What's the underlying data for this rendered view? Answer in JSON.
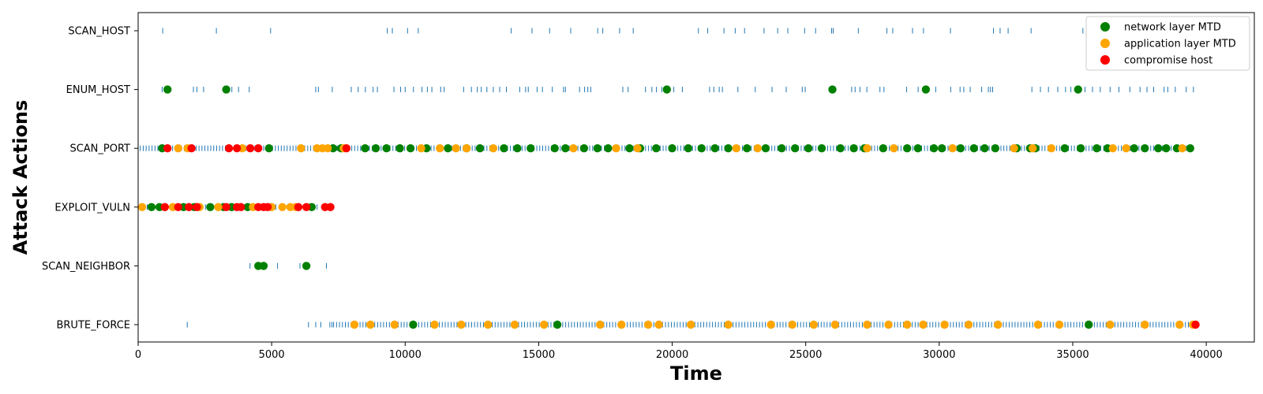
{
  "chart_data": {
    "type": "scatter",
    "title": "",
    "xlabel": "Time",
    "ylabel": "Attack Actions",
    "xlim": [
      0,
      41800
    ],
    "x_ticks": [
      0,
      5000,
      10000,
      15000,
      20000,
      25000,
      30000,
      35000,
      40000
    ],
    "categories": [
      "SCAN_HOST",
      "ENUM_HOST",
      "SCAN_PORT",
      "EXPLOIT_VULN",
      "SCAN_NEIGHBOR",
      "BRUTE_FORCE"
    ],
    "grid": false,
    "legend": "top-right",
    "colors": {
      "action_ticks": "#1f77b4",
      "network_layer_mtd": "#008000",
      "application_layer_mtd": "#ffa500",
      "compromise_host": "#ff0000"
    },
    "action_ticks": {
      "SCAN_HOST": [
        920,
        2930,
        4960,
        9330,
        9520,
        10090,
        10490,
        13970,
        14750,
        15410,
        16200,
        17210,
        17400,
        18030,
        18540,
        20980,
        21330,
        21940,
        22360,
        22710,
        23440,
        23950,
        24330,
        24960,
        25370,
        25970,
        26030,
        26970,
        28040,
        28260,
        29000,
        29410,
        30420,
        32030,
        32280,
        32580,
        33440,
        35380
      ],
      "ENUM_HOST": [
        900,
        1100,
        2070,
        2200,
        2450,
        3200,
        3510,
        3760,
        4160,
        6650,
        6750,
        7270,
        7980,
        8240,
        8510,
        8800,
        8960,
        9580,
        9830,
        10000,
        10310,
        10630,
        10830,
        11000,
        11330,
        11460,
        12190,
        12480,
        12700,
        12850,
        13060,
        13300,
        13540,
        13790,
        14290,
        14510,
        14610,
        14940,
        15140,
        15510,
        15930,
        16000,
        16530,
        16720,
        16840,
        16950,
        18150,
        18350,
        19000,
        19240,
        19410,
        19610,
        19880,
        20060,
        20380,
        21400,
        21560,
        21760,
        21880,
        22460,
        23110,
        23740,
        24270,
        24870,
        24980,
        26720,
        26850,
        27030,
        27290,
        27780,
        27930,
        28780,
        29210,
        29550,
        29870,
        30430,
        30780,
        30920,
        31160,
        31590,
        31840,
        31920,
        32000,
        33470,
        33790,
        34090,
        34440,
        34730,
        34930,
        35460,
        35740,
        36030,
        36400,
        36730,
        37140,
        37520,
        37780,
        38030,
        38420,
        38560,
        38840,
        39250,
        39520
      ],
      "EXPLOIT_VULN": [
        120,
        340,
        560,
        770,
        990,
        1200,
        1420,
        1640,
        1860,
        2080,
        2300,
        2520,
        2740,
        2960,
        3180,
        3400,
        3620,
        3840,
        4060,
        4280,
        4500,
        4720,
        4940,
        5160,
        5380,
        5600,
        5820,
        6040,
        6260,
        6480,
        6700,
        6920,
        7140
      ],
      "SCAN_NEIGHBOR": [
        4190,
        4790,
        5220,
        6060,
        7050
      ],
      "BRUTE_FORCE": [
        1840,
        6380,
        6650,
        6840,
        7180,
        7260
      ]
    },
    "scan_port_tick_range": [
      80,
      39500
    ],
    "brute_force_tick_range": [
      7320,
      39500
    ],
    "series": [
      {
        "name": "network layer MTD",
        "points": [
          {
            "x": 1100,
            "y": "ENUM_HOST"
          },
          {
            "x": 3300,
            "y": "ENUM_HOST"
          },
          {
            "x": 19800,
            "y": "ENUM_HOST"
          },
          {
            "x": 26000,
            "y": "ENUM_HOST"
          },
          {
            "x": 29500,
            "y": "ENUM_HOST"
          },
          {
            "x": 35200,
            "y": "ENUM_HOST"
          },
          {
            "x": 900,
            "y": "SCAN_PORT"
          },
          {
            "x": 4900,
            "y": "SCAN_PORT"
          },
          {
            "x": 7300,
            "y": "SCAN_PORT"
          },
          {
            "x": 7600,
            "y": "SCAN_PORT"
          },
          {
            "x": 8500,
            "y": "SCAN_PORT"
          },
          {
            "x": 8900,
            "y": "SCAN_PORT"
          },
          {
            "x": 9300,
            "y": "SCAN_PORT"
          },
          {
            "x": 9800,
            "y": "SCAN_PORT"
          },
          {
            "x": 10200,
            "y": "SCAN_PORT"
          },
          {
            "x": 10800,
            "y": "SCAN_PORT"
          },
          {
            "x": 11600,
            "y": "SCAN_PORT"
          },
          {
            "x": 12300,
            "y": "SCAN_PORT"
          },
          {
            "x": 12800,
            "y": "SCAN_PORT"
          },
          {
            "x": 13700,
            "y": "SCAN_PORT"
          },
          {
            "x": 14200,
            "y": "SCAN_PORT"
          },
          {
            "x": 14700,
            "y": "SCAN_PORT"
          },
          {
            "x": 15600,
            "y": "SCAN_PORT"
          },
          {
            "x": 16000,
            "y": "SCAN_PORT"
          },
          {
            "x": 16700,
            "y": "SCAN_PORT"
          },
          {
            "x": 17200,
            "y": "SCAN_PORT"
          },
          {
            "x": 17600,
            "y": "SCAN_PORT"
          },
          {
            "x": 18400,
            "y": "SCAN_PORT"
          },
          {
            "x": 18800,
            "y": "SCAN_PORT"
          },
          {
            "x": 19400,
            "y": "SCAN_PORT"
          },
          {
            "x": 20000,
            "y": "SCAN_PORT"
          },
          {
            "x": 20600,
            "y": "SCAN_PORT"
          },
          {
            "x": 21100,
            "y": "SCAN_PORT"
          },
          {
            "x": 21600,
            "y": "SCAN_PORT"
          },
          {
            "x": 22100,
            "y": "SCAN_PORT"
          },
          {
            "x": 22800,
            "y": "SCAN_PORT"
          },
          {
            "x": 23500,
            "y": "SCAN_PORT"
          },
          {
            "x": 24100,
            "y": "SCAN_PORT"
          },
          {
            "x": 24600,
            "y": "SCAN_PORT"
          },
          {
            "x": 25100,
            "y": "SCAN_PORT"
          },
          {
            "x": 25600,
            "y": "SCAN_PORT"
          },
          {
            "x": 26300,
            "y": "SCAN_PORT"
          },
          {
            "x": 26800,
            "y": "SCAN_PORT"
          },
          {
            "x": 27200,
            "y": "SCAN_PORT"
          },
          {
            "x": 27900,
            "y": "SCAN_PORT"
          },
          {
            "x": 28800,
            "y": "SCAN_PORT"
          },
          {
            "x": 29200,
            "y": "SCAN_PORT"
          },
          {
            "x": 29800,
            "y": "SCAN_PORT"
          },
          {
            "x": 30100,
            "y": "SCAN_PORT"
          },
          {
            "x": 30800,
            "y": "SCAN_PORT"
          },
          {
            "x": 31300,
            "y": "SCAN_PORT"
          },
          {
            "x": 31700,
            "y": "SCAN_PORT"
          },
          {
            "x": 32100,
            "y": "SCAN_PORT"
          },
          {
            "x": 32900,
            "y": "SCAN_PORT"
          },
          {
            "x": 33400,
            "y": "SCAN_PORT"
          },
          {
            "x": 33600,
            "y": "SCAN_PORT"
          },
          {
            "x": 34700,
            "y": "SCAN_PORT"
          },
          {
            "x": 35300,
            "y": "SCAN_PORT"
          },
          {
            "x": 35900,
            "y": "SCAN_PORT"
          },
          {
            "x": 36300,
            "y": "SCAN_PORT"
          },
          {
            "x": 37300,
            "y": "SCAN_PORT"
          },
          {
            "x": 37700,
            "y": "SCAN_PORT"
          },
          {
            "x": 38200,
            "y": "SCAN_PORT"
          },
          {
            "x": 38500,
            "y": "SCAN_PORT"
          },
          {
            "x": 38900,
            "y": "SCAN_PORT"
          },
          {
            "x": 39400,
            "y": "SCAN_PORT"
          },
          {
            "x": 500,
            "y": "EXPLOIT_VULN"
          },
          {
            "x": 800,
            "y": "EXPLOIT_VULN"
          },
          {
            "x": 1700,
            "y": "EXPLOIT_VULN"
          },
          {
            "x": 2100,
            "y": "EXPLOIT_VULN"
          },
          {
            "x": 2700,
            "y": "EXPLOIT_VULN"
          },
          {
            "x": 3200,
            "y": "EXPLOIT_VULN"
          },
          {
            "x": 3500,
            "y": "EXPLOIT_VULN"
          },
          {
            "x": 4100,
            "y": "EXPLOIT_VULN"
          },
          {
            "x": 6500,
            "y": "EXPLOIT_VULN"
          },
          {
            "x": 4500,
            "y": "SCAN_NEIGHBOR"
          },
          {
            "x": 4700,
            "y": "SCAN_NEIGHBOR"
          },
          {
            "x": 6300,
            "y": "SCAN_NEIGHBOR"
          },
          {
            "x": 10300,
            "y": "BRUTE_FORCE"
          },
          {
            "x": 15700,
            "y": "BRUTE_FORCE"
          },
          {
            "x": 35600,
            "y": "BRUTE_FORCE"
          }
        ]
      },
      {
        "name": "application layer MTD",
        "points": [
          {
            "x": 1500,
            "y": "SCAN_PORT"
          },
          {
            "x": 1850,
            "y": "SCAN_PORT"
          },
          {
            "x": 3900,
            "y": "SCAN_PORT"
          },
          {
            "x": 6100,
            "y": "SCAN_PORT"
          },
          {
            "x": 6700,
            "y": "SCAN_PORT"
          },
          {
            "x": 6900,
            "y": "SCAN_PORT"
          },
          {
            "x": 7100,
            "y": "SCAN_PORT"
          },
          {
            "x": 7700,
            "y": "SCAN_PORT"
          },
          {
            "x": 10600,
            "y": "SCAN_PORT"
          },
          {
            "x": 11300,
            "y": "SCAN_PORT"
          },
          {
            "x": 11900,
            "y": "SCAN_PORT"
          },
          {
            "x": 12300,
            "y": "SCAN_PORT"
          },
          {
            "x": 13300,
            "y": "SCAN_PORT"
          },
          {
            "x": 16300,
            "y": "SCAN_PORT"
          },
          {
            "x": 17900,
            "y": "SCAN_PORT"
          },
          {
            "x": 18700,
            "y": "SCAN_PORT"
          },
          {
            "x": 22400,
            "y": "SCAN_PORT"
          },
          {
            "x": 23200,
            "y": "SCAN_PORT"
          },
          {
            "x": 27300,
            "y": "SCAN_PORT"
          },
          {
            "x": 28300,
            "y": "SCAN_PORT"
          },
          {
            "x": 30500,
            "y": "SCAN_PORT"
          },
          {
            "x": 32800,
            "y": "SCAN_PORT"
          },
          {
            "x": 33500,
            "y": "SCAN_PORT"
          },
          {
            "x": 34200,
            "y": "SCAN_PORT"
          },
          {
            "x": 36500,
            "y": "SCAN_PORT"
          },
          {
            "x": 37000,
            "y": "SCAN_PORT"
          },
          {
            "x": 39100,
            "y": "SCAN_PORT"
          },
          {
            "x": 150,
            "y": "EXPLOIT_VULN"
          },
          {
            "x": 1300,
            "y": "EXPLOIT_VULN"
          },
          {
            "x": 2300,
            "y": "EXPLOIT_VULN"
          },
          {
            "x": 3000,
            "y": "EXPLOIT_VULN"
          },
          {
            "x": 4300,
            "y": "EXPLOIT_VULN"
          },
          {
            "x": 5000,
            "y": "EXPLOIT_VULN"
          },
          {
            "x": 5400,
            "y": "EXPLOIT_VULN"
          },
          {
            "x": 5700,
            "y": "EXPLOIT_VULN"
          },
          {
            "x": 5900,
            "y": "EXPLOIT_VULN"
          },
          {
            "x": 8100,
            "y": "BRUTE_FORCE"
          },
          {
            "x": 8700,
            "y": "BRUTE_FORCE"
          },
          {
            "x": 9600,
            "y": "BRUTE_FORCE"
          },
          {
            "x": 11100,
            "y": "BRUTE_FORCE"
          },
          {
            "x": 12100,
            "y": "BRUTE_FORCE"
          },
          {
            "x": 13100,
            "y": "BRUTE_FORCE"
          },
          {
            "x": 14100,
            "y": "BRUTE_FORCE"
          },
          {
            "x": 15200,
            "y": "BRUTE_FORCE"
          },
          {
            "x": 17300,
            "y": "BRUTE_FORCE"
          },
          {
            "x": 18100,
            "y": "BRUTE_FORCE"
          },
          {
            "x": 19100,
            "y": "BRUTE_FORCE"
          },
          {
            "x": 19500,
            "y": "BRUTE_FORCE"
          },
          {
            "x": 20700,
            "y": "BRUTE_FORCE"
          },
          {
            "x": 22100,
            "y": "BRUTE_FORCE"
          },
          {
            "x": 23700,
            "y": "BRUTE_FORCE"
          },
          {
            "x": 24500,
            "y": "BRUTE_FORCE"
          },
          {
            "x": 25300,
            "y": "BRUTE_FORCE"
          },
          {
            "x": 26100,
            "y": "BRUTE_FORCE"
          },
          {
            "x": 27300,
            "y": "BRUTE_FORCE"
          },
          {
            "x": 28100,
            "y": "BRUTE_FORCE"
          },
          {
            "x": 28800,
            "y": "BRUTE_FORCE"
          },
          {
            "x": 29400,
            "y": "BRUTE_FORCE"
          },
          {
            "x": 30200,
            "y": "BRUTE_FORCE"
          },
          {
            "x": 31100,
            "y": "BRUTE_FORCE"
          },
          {
            "x": 32200,
            "y": "BRUTE_FORCE"
          },
          {
            "x": 33700,
            "y": "BRUTE_FORCE"
          },
          {
            "x": 34500,
            "y": "BRUTE_FORCE"
          },
          {
            "x": 36400,
            "y": "BRUTE_FORCE"
          },
          {
            "x": 37700,
            "y": "BRUTE_FORCE"
          },
          {
            "x": 39000,
            "y": "BRUTE_FORCE"
          },
          {
            "x": 39500,
            "y": "BRUTE_FORCE"
          }
        ]
      },
      {
        "name": "compromise host",
        "points": [
          {
            "x": 1100,
            "y": "SCAN_PORT"
          },
          {
            "x": 2000,
            "y": "SCAN_PORT"
          },
          {
            "x": 3400,
            "y": "SCAN_PORT"
          },
          {
            "x": 3700,
            "y": "SCAN_PORT"
          },
          {
            "x": 4200,
            "y": "SCAN_PORT"
          },
          {
            "x": 4500,
            "y": "SCAN_PORT"
          },
          {
            "x": 7800,
            "y": "SCAN_PORT"
          },
          {
            "x": 1000,
            "y": "EXPLOIT_VULN"
          },
          {
            "x": 1500,
            "y": "EXPLOIT_VULN"
          },
          {
            "x": 1900,
            "y": "EXPLOIT_VULN"
          },
          {
            "x": 2200,
            "y": "EXPLOIT_VULN"
          },
          {
            "x": 3300,
            "y": "EXPLOIT_VULN"
          },
          {
            "x": 3700,
            "y": "EXPLOIT_VULN"
          },
          {
            "x": 3850,
            "y": "EXPLOIT_VULN"
          },
          {
            "x": 4500,
            "y": "EXPLOIT_VULN"
          },
          {
            "x": 4700,
            "y": "EXPLOIT_VULN"
          },
          {
            "x": 4850,
            "y": "EXPLOIT_VULN"
          },
          {
            "x": 6000,
            "y": "EXPLOIT_VULN"
          },
          {
            "x": 6300,
            "y": "EXPLOIT_VULN"
          },
          {
            "x": 7000,
            "y": "EXPLOIT_VULN"
          },
          {
            "x": 7200,
            "y": "EXPLOIT_VULN"
          },
          {
            "x": 39600,
            "y": "BRUTE_FORCE"
          }
        ]
      }
    ]
  }
}
